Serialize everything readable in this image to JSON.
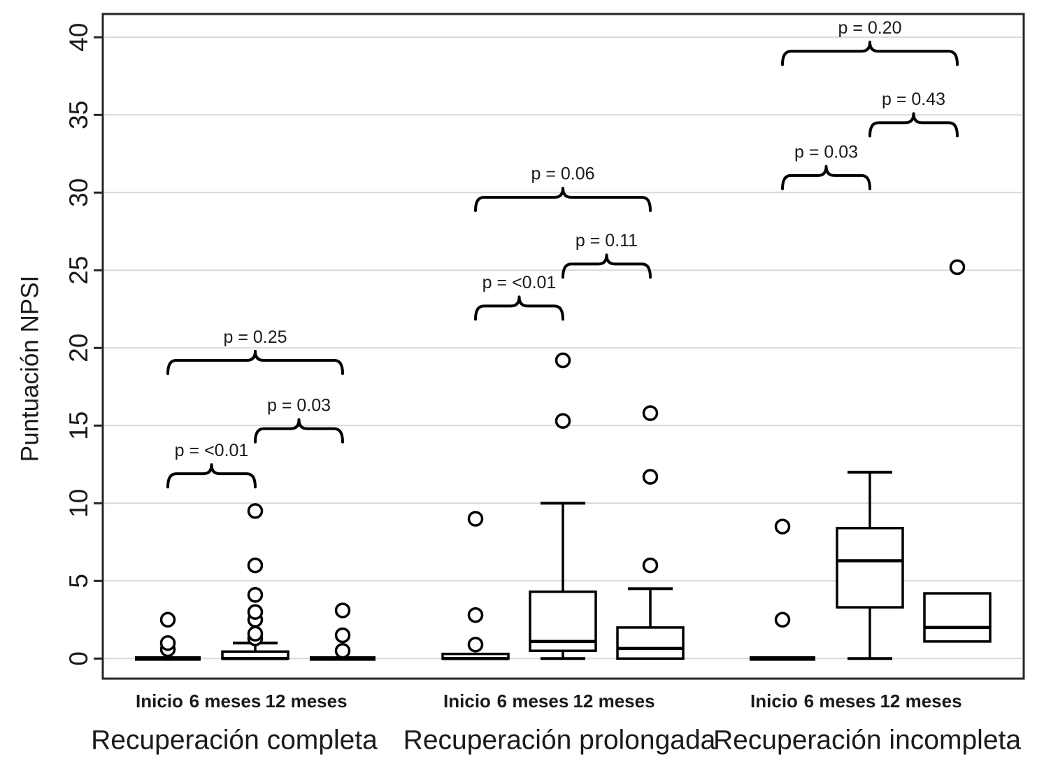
{
  "figure_title": "",
  "colors": {
    "frame": "#262626",
    "grid": "#d9d9d9",
    "stroke": "#000000",
    "text": "#1a1a1a",
    "background": "#ffffff"
  },
  "chart_data": {
    "type": "boxplot",
    "title": "",
    "ylabel": "Puntuación NPSI",
    "xlabel": "",
    "ylim": [
      0,
      40
    ],
    "yticks": [
      0,
      5,
      10,
      15,
      20,
      25,
      30,
      35,
      40
    ],
    "grid": true,
    "legend": "none",
    "groups": [
      {
        "label": "Recuperación completa",
        "categories": [
          "Inicio",
          "6 meses",
          "12 meses"
        ],
        "boxes": [
          {
            "whislo": 0,
            "q1": 0,
            "med": 0,
            "q3": 0,
            "whishi": 0,
            "outliers": [
              0.6,
              1.0,
              2.5
            ]
          },
          {
            "whislo": 0,
            "q1": 0,
            "med": 0,
            "q3": 0.45,
            "whishi": 1.0,
            "outliers": [
              1.3,
              1.6,
              2.5,
              3.0,
              4.1,
              6.0,
              9.5
            ]
          },
          {
            "whislo": 0,
            "q1": 0,
            "med": 0,
            "q3": 0,
            "whishi": 0,
            "outliers": [
              0.5,
              1.5,
              3.1
            ]
          }
        ],
        "comparisons": [
          {
            "a": 0,
            "b": 1,
            "label": "p = <0.01",
            "bar": 11.9
          },
          {
            "a": 1,
            "b": 2,
            "label": "p = 0.03",
            "bar": 14.8
          },
          {
            "a": 0,
            "b": 2,
            "label": "p = 0.25",
            "bar": 19.2
          }
        ]
      },
      {
        "label": "Recuperación prolongada",
        "categories": [
          "Inicio",
          "6 meses",
          "12 meses"
        ],
        "boxes": [
          {
            "whislo": 0,
            "q1": 0,
            "med": 0,
            "q3": 0.3,
            "whishi": 0.3,
            "outliers": [
              0.9,
              2.8,
              9.0
            ]
          },
          {
            "whislo": 0,
            "q1": 0.5,
            "med": 1.1,
            "q3": 4.3,
            "whishi": 10.0,
            "outliers": [
              15.3,
              19.2
            ]
          },
          {
            "whislo": 0,
            "q1": 0,
            "med": 0.65,
            "q3": 2.0,
            "whishi": 4.5,
            "outliers": [
              6.0,
              11.7,
              15.8
            ]
          }
        ],
        "comparisons": [
          {
            "a": 0,
            "b": 1,
            "label": "p = <0.01",
            "bar": 22.7
          },
          {
            "a": 1,
            "b": 2,
            "label": "p = 0.11",
            "bar": 25.4
          },
          {
            "a": 0,
            "b": 2,
            "label": "p = 0.06",
            "bar": 29.7
          }
        ]
      },
      {
        "label": "Recuperación incompleta",
        "categories": [
          "Inicio",
          "6 meses",
          "12 meses"
        ],
        "boxes": [
          {
            "whislo": 0,
            "q1": 0,
            "med": 0,
            "q3": 0,
            "whishi": 0,
            "outliers": [
              2.5,
              8.5
            ]
          },
          {
            "whislo": 0,
            "q1": 3.3,
            "med": 6.3,
            "q3": 8.4,
            "whishi": 12.0,
            "outliers": []
          },
          {
            "whislo": 1.1,
            "q1": 1.1,
            "med": 2.0,
            "q3": 4.2,
            "whishi": 4.2,
            "outliers": [
              25.2
            ]
          }
        ],
        "comparisons": [
          {
            "a": 0,
            "b": 1,
            "label": "p = 0.03",
            "bar": 31.1
          },
          {
            "a": 1,
            "b": 2,
            "label": "p = 0.43",
            "bar": 34.5
          },
          {
            "a": 0,
            "b": 2,
            "label": "p = 0.20",
            "bar": 39.1
          }
        ]
      }
    ]
  }
}
